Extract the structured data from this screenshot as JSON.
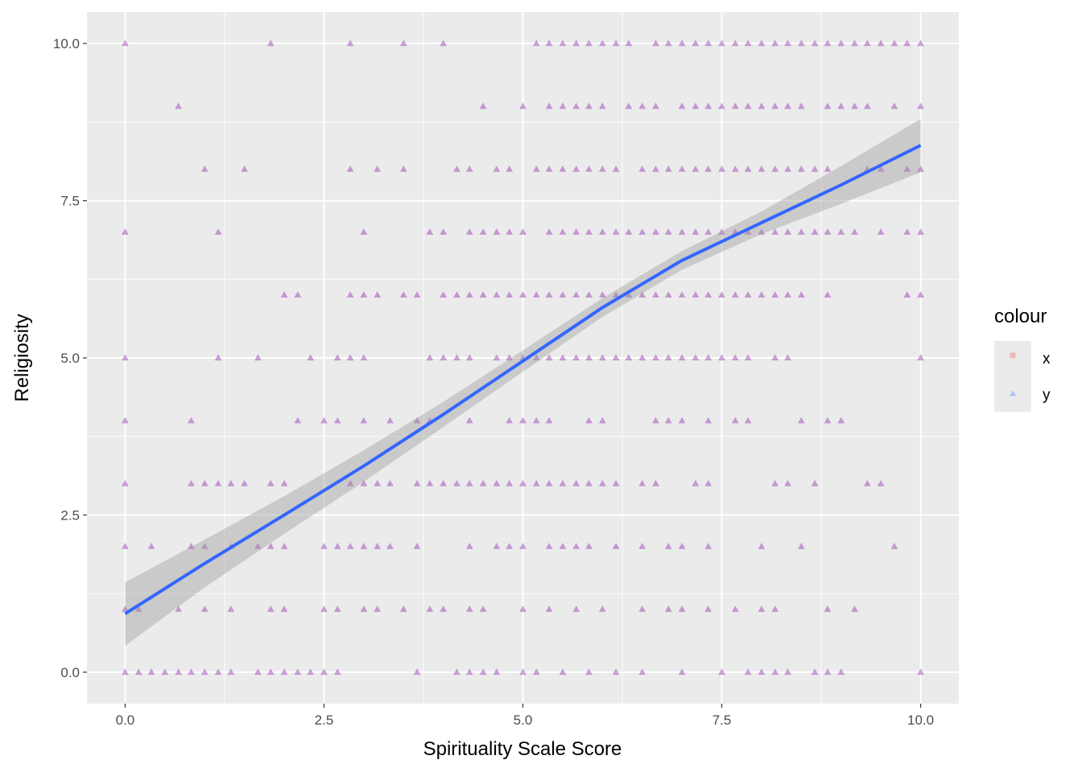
{
  "chart_data": {
    "type": "scatter",
    "xlabel": "Spirituality Scale Score",
    "ylabel": "Religiosity",
    "xlim": [
      -0.48,
      10.48
    ],
    "ylim": [
      -0.5,
      10.5
    ],
    "x_ticks": [
      "0.0",
      "2.5",
      "5.0",
      "7.5",
      "10.0"
    ],
    "y_ticks": [
      "0.0",
      "2.5",
      "5.0",
      "7.5",
      "10.0"
    ],
    "grid": true,
    "legend": {
      "title": "colour",
      "placement": "right",
      "entries": [
        {
          "label": "x",
          "color": "#F8766D",
          "shape": "square"
        },
        {
          "label": "y",
          "color": "#619CFF",
          "shape": "triangle"
        }
      ]
    },
    "point_color": "#8e24aa",
    "point_alpha": 0.42,
    "fit_line": {
      "color": "#3366FF",
      "ribbon_color": "#999999",
      "points": [
        {
          "x": 0.0,
          "y": 0.93,
          "lo": 0.42,
          "hi": 1.43
        },
        {
          "x": 1.0,
          "y": 1.73,
          "lo": 1.35,
          "hi": 2.11
        },
        {
          "x": 2.0,
          "y": 2.5,
          "lo": 2.2,
          "hi": 2.8
        },
        {
          "x": 3.0,
          "y": 3.28,
          "lo": 3.03,
          "hi": 3.53
        },
        {
          "x": 4.0,
          "y": 4.1,
          "lo": 3.9,
          "hi": 4.3
        },
        {
          "x": 5.0,
          "y": 4.95,
          "lo": 4.78,
          "hi": 5.12
        },
        {
          "x": 6.0,
          "y": 5.8,
          "lo": 5.65,
          "hi": 5.95
        },
        {
          "x": 7.0,
          "y": 6.55,
          "lo": 6.4,
          "hi": 6.7
        },
        {
          "x": 8.0,
          "y": 7.15,
          "lo": 6.97,
          "hi": 7.33
        },
        {
          "x": 9.0,
          "y": 7.75,
          "lo": 7.45,
          "hi": 8.05
        },
        {
          "x": 10.0,
          "y": 8.38,
          "lo": 7.95,
          "hi": 8.8
        }
      ]
    },
    "series": [
      {
        "y": 0,
        "x": [
          0,
          0.17,
          0.33,
          0.5,
          0.67,
          0.83,
          1,
          1.17,
          1.33,
          1.67,
          1.83,
          2,
          2.17,
          2.33,
          2.5,
          2.67,
          3.67,
          4.17,
          4.33,
          4.5,
          4.67,
          5,
          5.17,
          5.5,
          5.83,
          6.17,
          6.5,
          7,
          7.5,
          7.83,
          8,
          8.17,
          8.33,
          8.67,
          8.83,
          9,
          10
        ]
      },
      {
        "y": 1,
        "x": [
          0,
          0.17,
          0.67,
          1,
          1.33,
          1.83,
          2,
          2.5,
          2.67,
          3,
          3.17,
          3.5,
          3.83,
          4,
          4.33,
          4.5,
          5,
          5.33,
          5.67,
          6,
          6.5,
          6.83,
          7,
          7.33,
          7.67,
          8,
          8.17,
          8.83,
          9.17
        ]
      },
      {
        "y": 2,
        "x": [
          0,
          0.33,
          0.83,
          1,
          1.33,
          1.67,
          1.83,
          2,
          2.5,
          2.67,
          2.83,
          3,
          3.17,
          3.33,
          3.67,
          4.33,
          4.67,
          4.83,
          5,
          5.33,
          5.5,
          5.67,
          5.83,
          6.17,
          6.5,
          6.83,
          7,
          7.33,
          8,
          8.5,
          9.67
        ]
      },
      {
        "y": 3,
        "x": [
          0,
          0.83,
          1,
          1.17,
          1.33,
          1.5,
          1.83,
          2,
          2.83,
          3,
          3.17,
          3.33,
          3.67,
          3.83,
          4,
          4.17,
          4.33,
          4.5,
          4.67,
          4.83,
          5,
          5.17,
          5.33,
          5.5,
          5.67,
          5.83,
          6,
          6.17,
          6.5,
          6.67,
          7.17,
          7.33,
          8.17,
          8.33,
          8.67,
          9.33,
          9.5
        ]
      },
      {
        "y": 4,
        "x": [
          0,
          0.83,
          2.17,
          2.5,
          2.67,
          3,
          3.33,
          3.67,
          3.83,
          4.33,
          4.83,
          5,
          5.17,
          5.33,
          5.83,
          6,
          6.67,
          6.83,
          7,
          7.33,
          7.67,
          7.83,
          8.5,
          8.83,
          9
        ]
      },
      {
        "y": 5,
        "x": [
          0,
          1.17,
          1.67,
          2.33,
          2.67,
          2.83,
          3,
          3.83,
          4,
          4.17,
          4.33,
          4.67,
          4.83,
          5,
          5.17,
          5.33,
          5.5,
          5.67,
          5.83,
          6,
          6.17,
          6.33,
          6.5,
          6.67,
          6.83,
          7,
          7.17,
          7.33,
          7.5,
          7.67,
          7.83,
          8.17,
          8.33,
          10
        ]
      },
      {
        "y": 6,
        "x": [
          2,
          2.17,
          2.83,
          3,
          3.17,
          3.5,
          3.67,
          4,
          4.17,
          4.33,
          4.5,
          4.67,
          4.83,
          5,
          5.17,
          5.33,
          5.5,
          5.67,
          5.83,
          6,
          6.17,
          6.33,
          6.5,
          6.67,
          6.83,
          7,
          7.17,
          7.33,
          7.5,
          7.67,
          7.83,
          8,
          8.17,
          8.33,
          8.5,
          8.83,
          9.83,
          10
        ]
      },
      {
        "y": 7,
        "x": [
          0,
          1.17,
          3,
          3.83,
          4,
          4.33,
          4.5,
          4.67,
          4.83,
          5,
          5.33,
          5.5,
          5.67,
          5.83,
          6,
          6.17,
          6.33,
          6.5,
          6.67,
          6.83,
          7,
          7.17,
          7.33,
          7.5,
          7.67,
          7.83,
          8,
          8.17,
          8.33,
          8.5,
          8.67,
          8.83,
          9,
          9.17,
          9.5,
          9.83,
          10
        ]
      },
      {
        "y": 8,
        "x": [
          1,
          1.5,
          2.83,
          3.17,
          3.5,
          4.17,
          4.33,
          4.67,
          4.83,
          5.17,
          5.33,
          5.5,
          5.67,
          5.83,
          6,
          6.17,
          6.5,
          6.67,
          6.83,
          7,
          7.17,
          7.33,
          7.5,
          7.67,
          7.83,
          8,
          8.17,
          8.33,
          8.5,
          8.67,
          8.83,
          9.33,
          9.5,
          9.83,
          10
        ]
      },
      {
        "y": 9,
        "x": [
          0.67,
          4.5,
          5,
          5.33,
          5.5,
          5.67,
          5.83,
          6,
          6.33,
          6.5,
          6.67,
          7,
          7.17,
          7.33,
          7.5,
          7.67,
          7.83,
          8,
          8.17,
          8.33,
          8.5,
          8.83,
          9,
          9.17,
          9.33,
          9.67,
          10
        ]
      },
      {
        "y": 10,
        "x": [
          0,
          1.83,
          2.83,
          3.5,
          4,
          5.17,
          5.33,
          5.5,
          5.67,
          5.83,
          6,
          6.17,
          6.33,
          6.67,
          6.83,
          7,
          7.17,
          7.33,
          7.5,
          7.67,
          7.83,
          8,
          8.17,
          8.33,
          8.5,
          8.67,
          8.83,
          9,
          9.17,
          9.33,
          9.5,
          9.67,
          9.83,
          10
        ]
      }
    ]
  }
}
